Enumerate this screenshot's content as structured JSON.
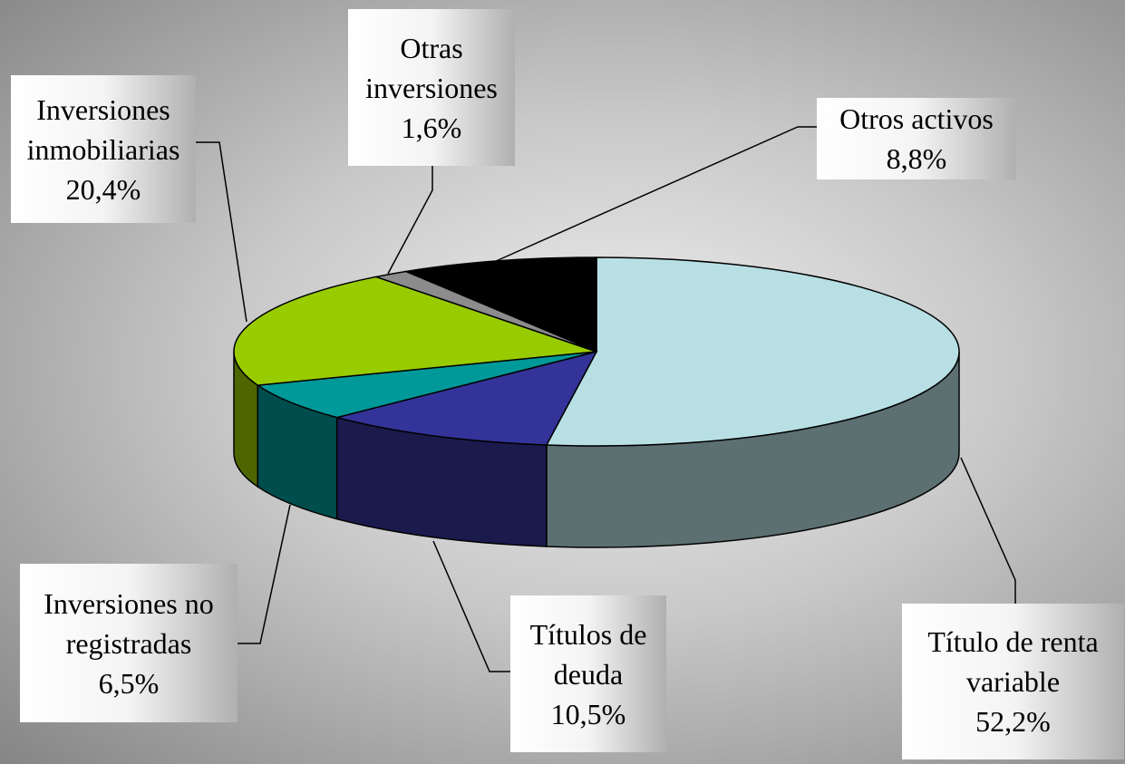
{
  "chart_data": {
    "type": "pie3d",
    "categories": [
      "Título de renta variable",
      "Títulos de deuda",
      "Inversiones no registradas",
      "Inversiones inmobiliarias",
      "Otras inversiones",
      "Otros activos"
    ],
    "values": [
      52.2,
      10.5,
      6.5,
      20.4,
      1.6,
      8.8
    ],
    "value_labels": [
      "52,2%",
      "10,5%",
      "6,5%",
      "20,4%",
      "1,6%",
      "8,8%"
    ],
    "colors": [
      "#b8e0e4",
      "#333399",
      "#009999",
      "#99cc00",
      "#8c8c8c",
      "#000000"
    ]
  }
}
